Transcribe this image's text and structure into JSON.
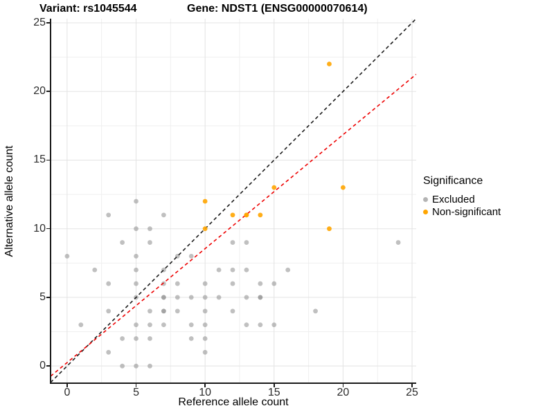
{
  "title": {
    "left": "Variant: rs1045544",
    "right": "Gene: NDST1 (ENSG00000070614)"
  },
  "axes": {
    "x": {
      "label": "Reference allele count",
      "ticks": [
        0,
        5,
        10,
        15,
        20,
        25
      ],
      "range": [
        -1.2,
        25.3
      ]
    },
    "y": {
      "label": "Alternative allele count",
      "ticks": [
        0,
        5,
        10,
        15,
        20,
        25
      ],
      "range": [
        -1.2,
        25.3
      ]
    }
  },
  "legend": {
    "title": "Significance",
    "items": [
      {
        "label": "Excluded",
        "color": "#b4b4b4"
      },
      {
        "label": "Non-significant",
        "color": "#ffa500"
      }
    ]
  },
  "colors": {
    "grid_major": "#e3e3e3",
    "grid_minor": "#efefef",
    "identity_line": "#1a1a1a",
    "fit_line": "#ee0000",
    "excluded_point": "#8c8c8c",
    "non_significant_point": "#ffa500"
  },
  "chart_data": {
    "type": "scatter",
    "title": "Variant: rs1045544   Gene: NDST1 (ENSG00000070614)",
    "xlabel": "Reference allele count",
    "ylabel": "Alternative allele count",
    "xlim": [
      -1.2,
      25.3
    ],
    "ylim": [
      -1.2,
      25.3
    ],
    "grid": true,
    "legend_position": "right",
    "series": [
      {
        "name": "Excluded",
        "color": "#8c8c8c",
        "opacity": 0.55,
        "points": [
          [
            4,
            0
          ],
          [
            5,
            0
          ],
          [
            6,
            0
          ],
          [
            3,
            1
          ],
          [
            10,
            1
          ],
          [
            4,
            2
          ],
          [
            5,
            2
          ],
          [
            6,
            2
          ],
          [
            9,
            2
          ],
          [
            10,
            2
          ],
          [
            1,
            3
          ],
          [
            5,
            3
          ],
          [
            6,
            3
          ],
          [
            7,
            3
          ],
          [
            9,
            3
          ],
          [
            10,
            3
          ],
          [
            13,
            3
          ],
          [
            14,
            3
          ],
          [
            15,
            3
          ],
          [
            3,
            4
          ],
          [
            6,
            4
          ],
          [
            7,
            4
          ],
          [
            7,
            4
          ],
          [
            8,
            4
          ],
          [
            10,
            4
          ],
          [
            12,
            4
          ],
          [
            18,
            4
          ],
          [
            5,
            5
          ],
          [
            7,
            5
          ],
          [
            7,
            5
          ],
          [
            8,
            5
          ],
          [
            9,
            5
          ],
          [
            10,
            5
          ],
          [
            11,
            5
          ],
          [
            13,
            5
          ],
          [
            14,
            5
          ],
          [
            14,
            5
          ],
          [
            3,
            6
          ],
          [
            5,
            6
          ],
          [
            7,
            6
          ],
          [
            8,
            6
          ],
          [
            10,
            6
          ],
          [
            12,
            6
          ],
          [
            14,
            6
          ],
          [
            15,
            6
          ],
          [
            2,
            7
          ],
          [
            5,
            7
          ],
          [
            7,
            7
          ],
          [
            11,
            7
          ],
          [
            12,
            7
          ],
          [
            13,
            7
          ],
          [
            16,
            7
          ],
          [
            0,
            8
          ],
          [
            5,
            8
          ],
          [
            8,
            8
          ],
          [
            9,
            8
          ],
          [
            4,
            9
          ],
          [
            6,
            9
          ],
          [
            12,
            9
          ],
          [
            13,
            9
          ],
          [
            24,
            9
          ],
          [
            5,
            10
          ],
          [
            6,
            10
          ],
          [
            3,
            11
          ],
          [
            7,
            11
          ],
          [
            5,
            12
          ]
        ]
      },
      {
        "name": "Non-significant",
        "color": "#ffa500",
        "opacity": 0.9,
        "points": [
          [
            10,
            10
          ],
          [
            19,
            10
          ],
          [
            12,
            11
          ],
          [
            13,
            11
          ],
          [
            13,
            11
          ],
          [
            14,
            11
          ],
          [
            10,
            12
          ],
          [
            15,
            13
          ],
          [
            20,
            13
          ],
          [
            19,
            22
          ]
        ]
      }
    ],
    "lines": [
      {
        "name": "identity",
        "slope": 1,
        "intercept": 0,
        "color": "#1a1a1a",
        "dashed": true
      },
      {
        "name": "fit",
        "slope": 0.83,
        "intercept": 0.25,
        "color": "#ee0000",
        "dashed": true
      }
    ]
  }
}
